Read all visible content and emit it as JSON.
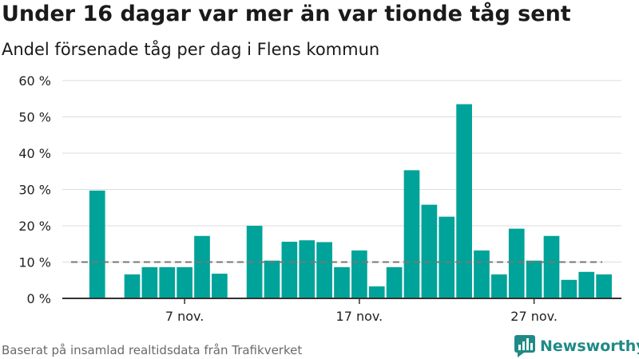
{
  "title": "Under 16 dagar var mer än var tionde tåg sent",
  "subtitle": "Andel försenade tåg per dag i Flens kommun",
  "source": "Baserat på insamlad realtidsdata från Trafikverket",
  "brand": {
    "name": "Newsworthy",
    "icon": "newsworthy-logo-icon"
  },
  "colors": {
    "bar": "#00a399",
    "reference_line": "#777777",
    "grid": "#dddddd",
    "axis": "#333333"
  },
  "chart_data": {
    "type": "bar",
    "title": "Under 16 dagar var mer än var tionde tåg sent",
    "subtitle": "Andel försenade tåg per dag i Flens kommun",
    "xlabel": "",
    "ylabel": "",
    "ylim": [
      0,
      60
    ],
    "y_ticks": [
      0,
      10,
      20,
      30,
      40,
      50,
      60
    ],
    "y_tick_labels": [
      "0 %",
      "10 %",
      "20 %",
      "30 %",
      "40 %",
      "50 %",
      "60 %"
    ],
    "x_tick_labels": [
      {
        "day": 7,
        "label": "7 nov."
      },
      {
        "day": 17,
        "label": "17 nov."
      },
      {
        "day": 27,
        "label": "27 nov."
      }
    ],
    "days": [
      1,
      2,
      3,
      4,
      5,
      6,
      7,
      8,
      9,
      10,
      11,
      12,
      13,
      14,
      15,
      16,
      17,
      18,
      19,
      20,
      21,
      22,
      23,
      24,
      25,
      26,
      27,
      28,
      29,
      30,
      31
    ],
    "values": [
      null,
      29.7,
      null,
      6.6,
      8.6,
      8.6,
      8.6,
      17.2,
      6.8,
      null,
      20.0,
      10.4,
      15.6,
      16.0,
      15.5,
      8.6,
      13.2,
      3.3,
      8.6,
      35.3,
      25.8,
      22.5,
      53.5,
      13.2,
      6.6,
      19.2,
      10.4,
      17.2,
      5.1,
      7.3,
      6.6
    ],
    "reference_line": {
      "value": 10,
      "style": "dashed"
    },
    "grid": true,
    "legend": "none"
  }
}
